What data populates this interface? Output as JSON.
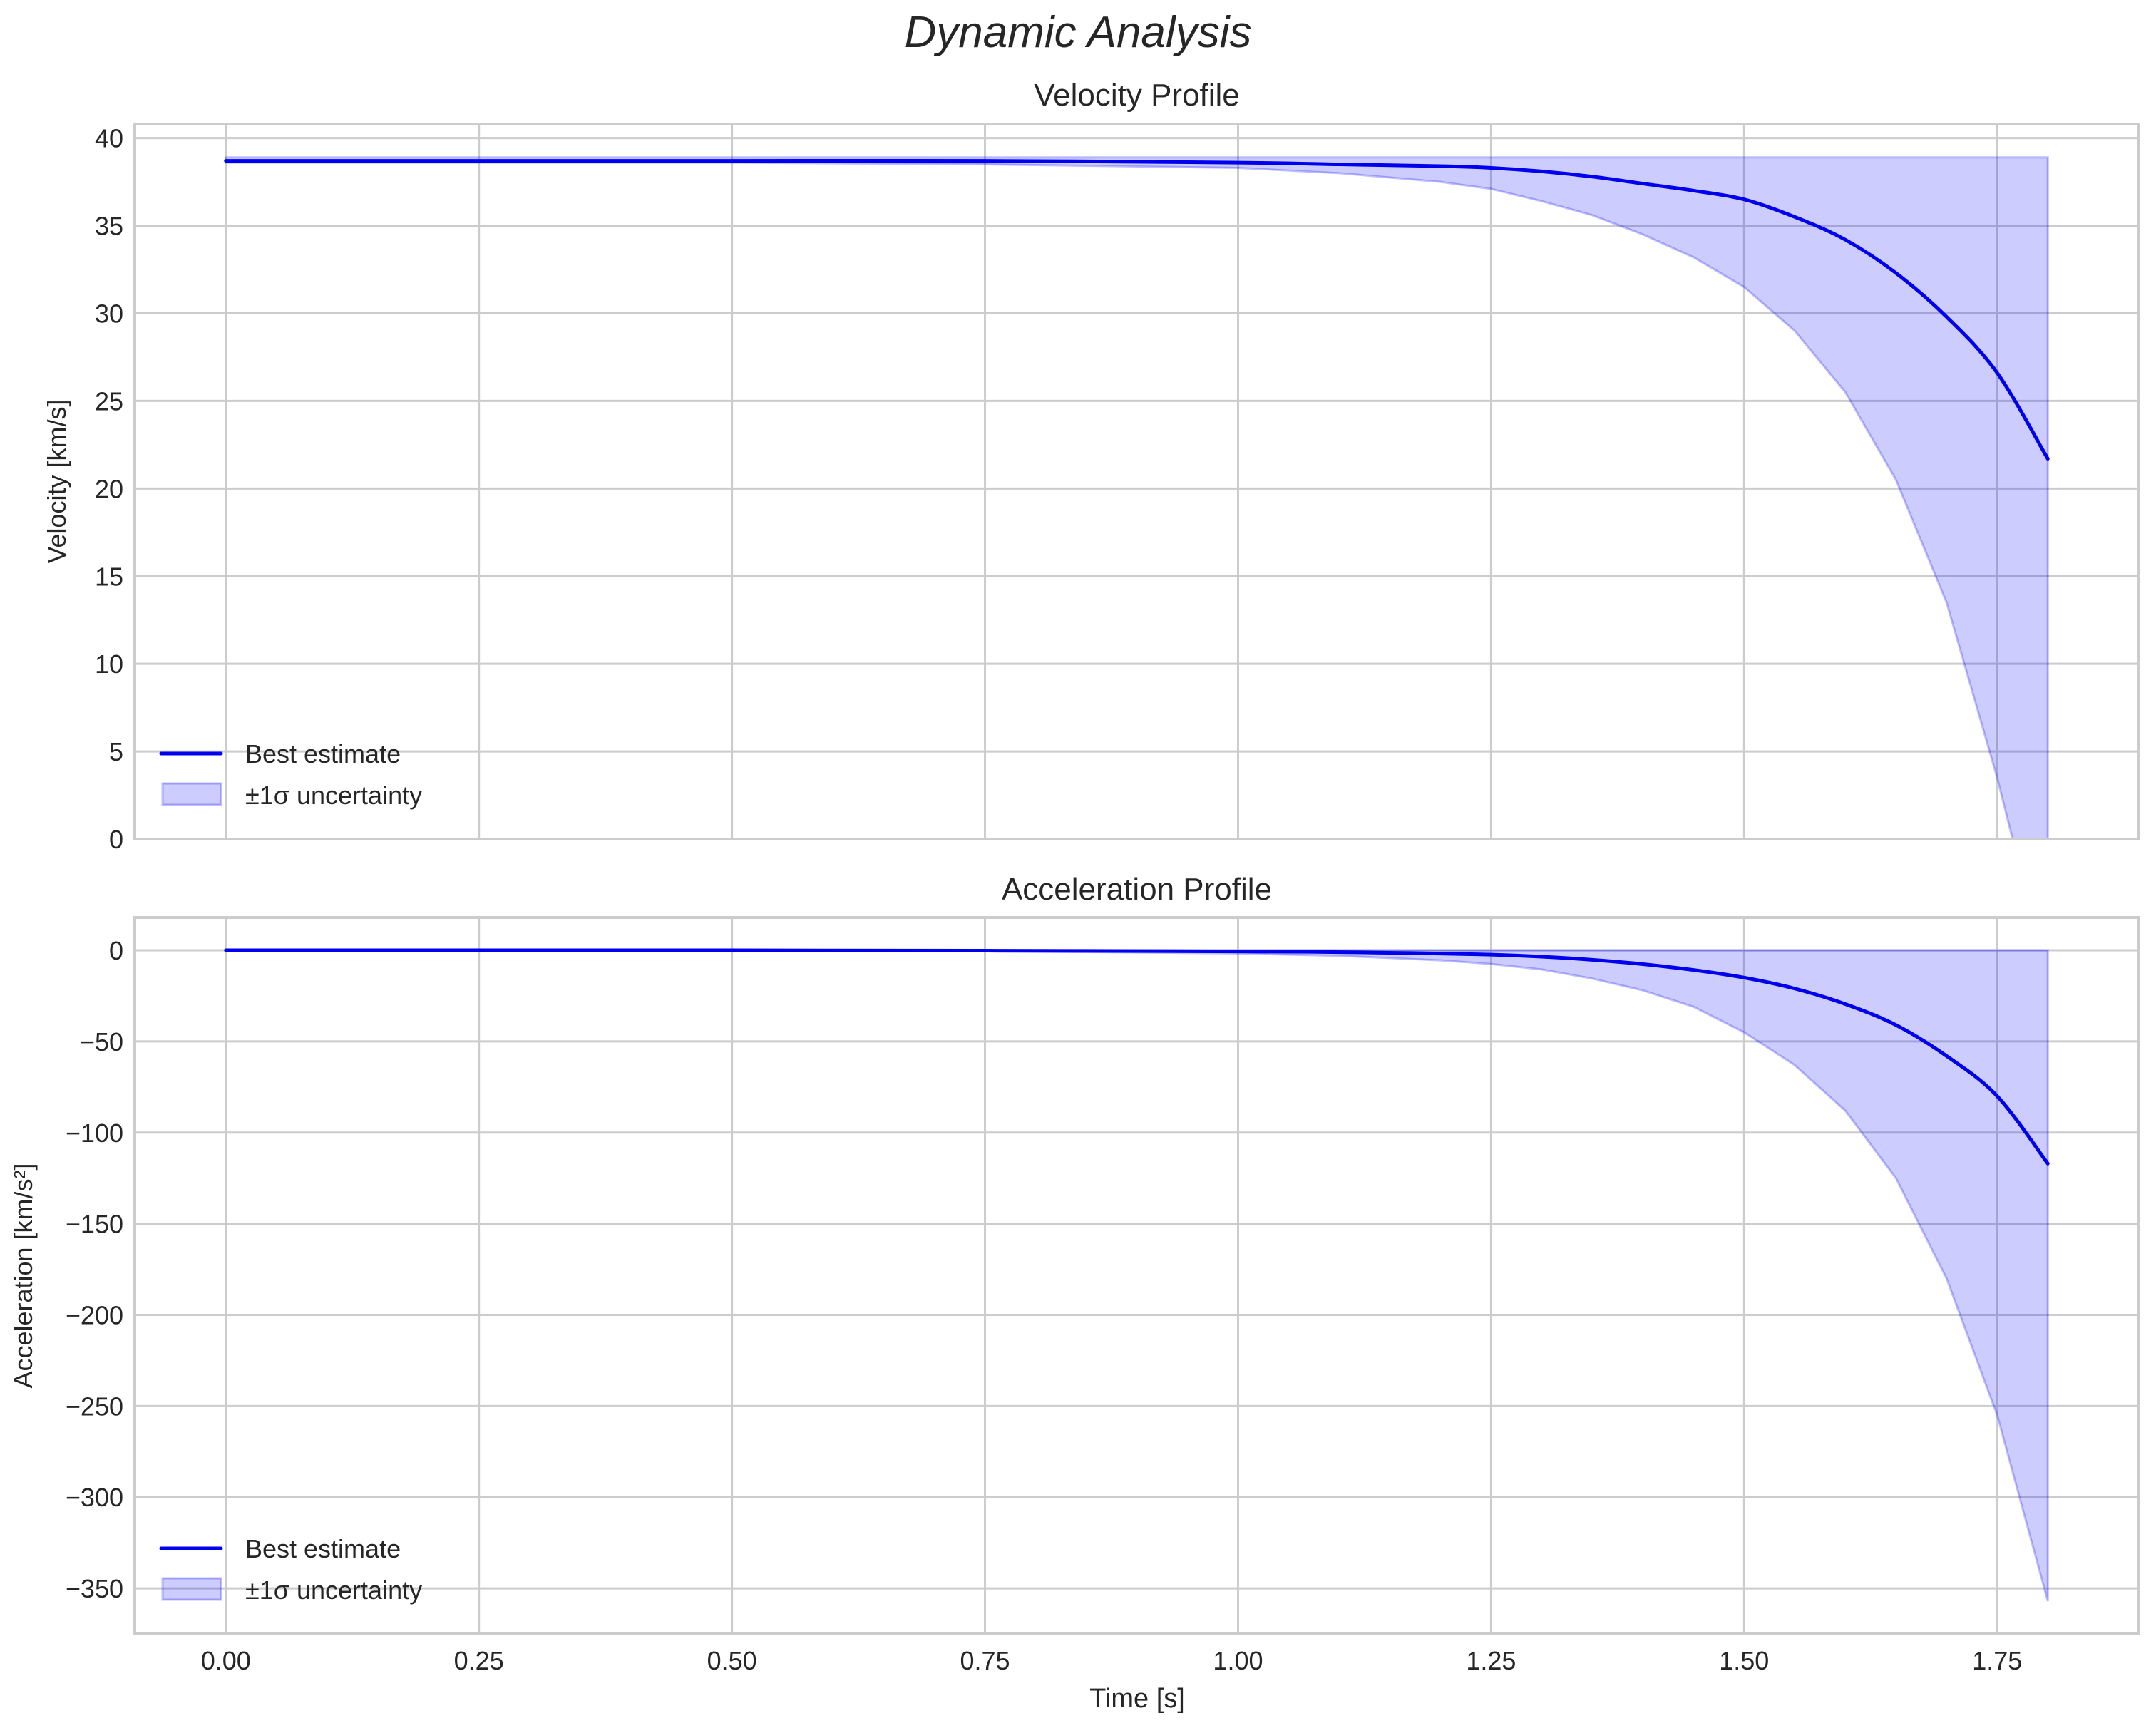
{
  "figure": {
    "suptitle": "Dynamic Analysis",
    "xlabel": "Time [s]",
    "colors": {
      "line": "#0000ee",
      "band_fill": "#0000ff",
      "band_alpha": 0.2,
      "grid": "#cccccc",
      "axes_edge": "#cccccc",
      "text": "#262626"
    }
  },
  "chart_data": [
    {
      "type": "line",
      "title": "Velocity Profile",
      "xlabel": "",
      "ylabel": "Velocity [km/s]",
      "xlim": [
        -0.09,
        1.89
      ],
      "ylim": [
        0,
        40.8
      ],
      "xticks": [
        "0.00",
        "0.25",
        "0.50",
        "0.75",
        "1.00",
        "1.25",
        "1.50",
        "1.75"
      ],
      "yticks": [
        "0",
        "5",
        "10",
        "15",
        "20",
        "25",
        "30",
        "35",
        "40"
      ],
      "grid": true,
      "legend": {
        "position": "lower left",
        "entries": [
          "Best estimate",
          "±1σ uncertainty"
        ]
      },
      "x": [
        0.0,
        0.25,
        0.5,
        0.75,
        1.0,
        1.1,
        1.2,
        1.25,
        1.3,
        1.35,
        1.4,
        1.45,
        1.5,
        1.55,
        1.6,
        1.65,
        1.7,
        1.75,
        1.8
      ],
      "series": [
        {
          "name": "Best estimate",
          "values": [
            38.7,
            38.7,
            38.7,
            38.7,
            38.6,
            38.5,
            38.4,
            38.3,
            38.1,
            37.8,
            37.4,
            37.0,
            36.5,
            35.5,
            34.2,
            32.3,
            29.8,
            26.6,
            21.7
          ]
        },
        {
          "name": "±1σ uncertainty (upper)",
          "values": [
            38.9,
            38.9,
            38.9,
            38.9,
            38.9,
            38.9,
            38.9,
            38.9,
            38.9,
            38.9,
            38.9,
            38.9,
            38.9,
            38.9,
            38.9,
            38.9,
            38.9,
            38.9,
            38.9
          ]
        },
        {
          "name": "±1σ uncertainty (lower)",
          "values": [
            38.6,
            38.6,
            38.6,
            38.5,
            38.3,
            38.0,
            37.5,
            37.1,
            36.4,
            35.6,
            34.5,
            33.2,
            31.5,
            29.0,
            25.5,
            20.5,
            13.5,
            3.5,
            -8.0
          ]
        }
      ]
    },
    {
      "type": "line",
      "title": "Acceleration Profile",
      "xlabel": "Time [s]",
      "ylabel": "Acceleration [km/s²]",
      "xlim": [
        -0.09,
        1.89
      ],
      "ylim": [
        -375,
        18
      ],
      "xticks": [
        "0.00",
        "0.25",
        "0.50",
        "0.75",
        "1.00",
        "1.25",
        "1.50",
        "1.75"
      ],
      "yticks": [
        "0",
        "−50",
        "−100",
        "−150",
        "−200",
        "−250",
        "−300",
        "−350"
      ],
      "grid": true,
      "legend": {
        "position": "lower left",
        "entries": [
          "Best estimate",
          "±1σ uncertainty"
        ]
      },
      "x": [
        0.0,
        0.25,
        0.5,
        0.75,
        1.0,
        1.1,
        1.2,
        1.25,
        1.3,
        1.35,
        1.4,
        1.45,
        1.5,
        1.55,
        1.6,
        1.65,
        1.7,
        1.75,
        1.8
      ],
      "series": [
        {
          "name": "Best estimate",
          "values": [
            0,
            0,
            0,
            -0.2,
            -0.6,
            -1.0,
            -1.8,
            -2.4,
            -3.5,
            -5.2,
            -7.6,
            -10.8,
            -15.0,
            -21.0,
            -29.5,
            -41.0,
            -58.0,
            -80.0,
            -117.0
          ]
        },
        {
          "name": "±1σ uncertainty (upper)",
          "values": [
            0,
            0,
            0,
            0,
            0,
            0,
            0,
            0,
            0,
            0,
            0,
            0,
            0,
            0,
            0,
            0,
            0,
            0,
            0
          ]
        },
        {
          "name": "±1σ uncertainty (lower)",
          "values": [
            0,
            0,
            -0.1,
            -0.5,
            -1.7,
            -3.0,
            -5.5,
            -7.5,
            -10.5,
            -15.5,
            -22.0,
            -31.0,
            -45.0,
            -63.0,
            -88.0,
            -125.0,
            -180.0,
            -255.0,
            -357.0
          ]
        }
      ]
    }
  ]
}
